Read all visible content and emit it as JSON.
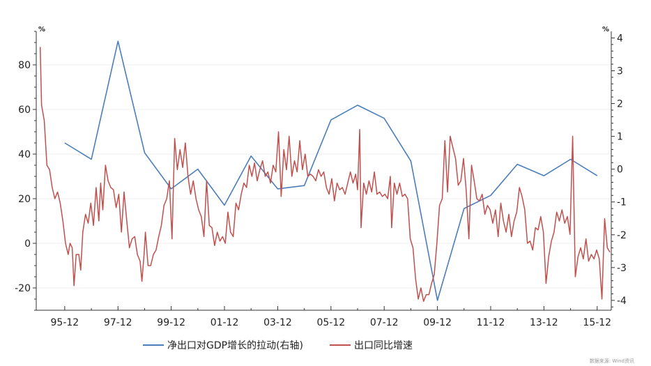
{
  "chart_data": {
    "type": "line",
    "left_axis": {
      "unit": "%",
      "ylim": [
        -30,
        95
      ],
      "ticks": [
        -20,
        0,
        20,
        40,
        60,
        80
      ]
    },
    "right_axis": {
      "unit": "%",
      "ylim": [
        -4.3,
        4.2
      ],
      "ticks": [
        -4,
        -3,
        -2,
        -1,
        0,
        1,
        2,
        3,
        4
      ]
    },
    "x_range": [
      1994.85,
      2016.45
    ],
    "x_ticks": [
      {
        "label": "95-12",
        "x": 1995.92
      },
      {
        "label": "97-12",
        "x": 1997.92
      },
      {
        "label": "99-12",
        "x": 1999.92
      },
      {
        "label": "01-12",
        "x": 2001.92
      },
      {
        "label": "03-12",
        "x": 2003.92
      },
      {
        "label": "05-12",
        "x": 2005.92
      },
      {
        "label": "07-12",
        "x": 2007.92
      },
      {
        "label": "09-12",
        "x": 2009.92
      },
      {
        "label": "11-12",
        "x": 2011.92
      },
      {
        "label": "13-12",
        "x": 2013.92
      },
      {
        "label": "15-12",
        "x": 2015.92
      }
    ],
    "gridlines": true,
    "legend_position": "bottom",
    "source_note": "数据来源: Wind资讯",
    "series": [
      {
        "name": "净出口对GDP增长的拉动(右轴)",
        "axis": "right",
        "color": "#4a7ebb",
        "points": [
          [
            1995.92,
            0.8
          ],
          [
            1996.92,
            0.3
          ],
          [
            1997.92,
            3.9
          ],
          [
            1998.92,
            0.5
          ],
          [
            1999.92,
            -0.6
          ],
          [
            2000.92,
            0.0
          ],
          [
            2001.92,
            -1.1
          ],
          [
            2002.92,
            0.4
          ],
          [
            2003.92,
            -0.6
          ],
          [
            2004.92,
            -0.5
          ],
          [
            2005.92,
            1.5
          ],
          [
            2006.92,
            1.95
          ],
          [
            2007.92,
            1.55
          ],
          [
            2008.92,
            0.25
          ],
          [
            2009.92,
            -4.0
          ],
          [
            2010.92,
            -1.2
          ],
          [
            2011.92,
            -0.8
          ],
          [
            2012.92,
            0.15
          ],
          [
            2013.92,
            -0.2
          ],
          [
            2014.92,
            0.3
          ],
          [
            2015.92,
            -0.2
          ]
        ]
      },
      {
        "name": "出口同比增速",
        "axis": "left",
        "color": "#c0504d",
        "points": [
          [
            1995.0,
            88
          ],
          [
            1995.05,
            62
          ],
          [
            1995.15,
            55
          ],
          [
            1995.25,
            35
          ],
          [
            1995.35,
            33
          ],
          [
            1995.45,
            25
          ],
          [
            1995.55,
            20
          ],
          [
            1995.65,
            23
          ],
          [
            1995.75,
            18
          ],
          [
            1995.85,
            10
          ],
          [
            1995.95,
            0
          ],
          [
            1996.05,
            -5
          ],
          [
            1996.12,
            0
          ],
          [
            1996.2,
            -2
          ],
          [
            1996.27,
            -19
          ],
          [
            1996.35,
            -5
          ],
          [
            1996.45,
            -5
          ],
          [
            1996.52,
            -12
          ],
          [
            1996.6,
            5
          ],
          [
            1996.7,
            13
          ],
          [
            1996.8,
            9
          ],
          [
            1996.9,
            18
          ],
          [
            1997.0,
            8
          ],
          [
            1997.1,
            25
          ],
          [
            1997.2,
            10
          ],
          [
            1997.27,
            27
          ],
          [
            1997.35,
            15
          ],
          [
            1997.45,
            35
          ],
          [
            1997.55,
            28
          ],
          [
            1997.65,
            25
          ],
          [
            1997.75,
            24
          ],
          [
            1997.85,
            16
          ],
          [
            1997.95,
            22
          ],
          [
            1998.05,
            5
          ],
          [
            1998.15,
            23
          ],
          [
            1998.25,
            10
          ],
          [
            1998.35,
            -2
          ],
          [
            1998.45,
            2
          ],
          [
            1998.55,
            3
          ],
          [
            1998.65,
            -5
          ],
          [
            1998.75,
            -8
          ],
          [
            1998.82,
            -17
          ],
          [
            1998.9,
            -5
          ],
          [
            1998.95,
            5
          ],
          [
            1999.05,
            -10
          ],
          [
            1999.15,
            -10
          ],
          [
            1999.25,
            -5
          ],
          [
            1999.35,
            -3
          ],
          [
            1999.45,
            3
          ],
          [
            1999.55,
            8
          ],
          [
            1999.65,
            17
          ],
          [
            1999.75,
            20
          ],
          [
            1999.85,
            28
          ],
          [
            1999.95,
            2
          ],
          [
            2000.05,
            47
          ],
          [
            2000.15,
            33
          ],
          [
            2000.25,
            42
          ],
          [
            2000.35,
            34
          ],
          [
            2000.45,
            45
          ],
          [
            2000.55,
            30
          ],
          [
            2000.65,
            22
          ],
          [
            2000.75,
            28
          ],
          [
            2000.85,
            20
          ],
          [
            2000.95,
            15
          ],
          [
            2001.05,
            12
          ],
          [
            2001.15,
            3
          ],
          [
            2001.25,
            28
          ],
          [
            2001.35,
            8
          ],
          [
            2001.45,
            7
          ],
          [
            2001.55,
            -1
          ],
          [
            2001.65,
            5
          ],
          [
            2001.75,
            1
          ],
          [
            2001.85,
            3
          ],
          [
            2001.95,
            0
          ],
          [
            2002.05,
            14
          ],
          [
            2002.15,
            5
          ],
          [
            2002.25,
            3
          ],
          [
            2002.35,
            18
          ],
          [
            2002.45,
            15
          ],
          [
            2002.55,
            22
          ],
          [
            2002.65,
            27
          ],
          [
            2002.75,
            25
          ],
          [
            2002.85,
            35
          ],
          [
            2002.95,
            30
          ],
          [
            2003.05,
            36
          ],
          [
            2003.15,
            28
          ],
          [
            2003.25,
            33
          ],
          [
            2003.35,
            37
          ],
          [
            2003.45,
            30
          ],
          [
            2003.55,
            32
          ],
          [
            2003.65,
            27
          ],
          [
            2003.75,
            35
          ],
          [
            2003.85,
            32
          ],
          [
            2003.95,
            50
          ],
          [
            2004.05,
            21
          ],
          [
            2004.15,
            42
          ],
          [
            2004.25,
            33
          ],
          [
            2004.35,
            48
          ],
          [
            2004.45,
            30
          ],
          [
            2004.55,
            37
          ],
          [
            2004.65,
            32
          ],
          [
            2004.75,
            46
          ],
          [
            2004.85,
            33
          ],
          [
            2004.95,
            40
          ],
          [
            2005.05,
            30
          ],
          [
            2005.15,
            31
          ],
          [
            2005.25,
            30
          ],
          [
            2005.35,
            28
          ],
          [
            2005.45,
            33
          ],
          [
            2005.55,
            30
          ],
          [
            2005.65,
            32
          ],
          [
            2005.75,
            25
          ],
          [
            2005.85,
            22
          ],
          [
            2005.95,
            29
          ],
          [
            2006.05,
            19
          ],
          [
            2006.15,
            27
          ],
          [
            2006.25,
            24
          ],
          [
            2006.35,
            25
          ],
          [
            2006.45,
            22
          ],
          [
            2006.55,
            27
          ],
          [
            2006.65,
            32
          ],
          [
            2006.75,
            27
          ],
          [
            2006.85,
            31
          ],
          [
            2006.92,
            24
          ],
          [
            2007.0,
            51
          ],
          [
            2007.05,
            7
          ],
          [
            2007.15,
            27
          ],
          [
            2007.25,
            22
          ],
          [
            2007.35,
            28
          ],
          [
            2007.45,
            23
          ],
          [
            2007.55,
            32
          ],
          [
            2007.65,
            22
          ],
          [
            2007.75,
            23
          ],
          [
            2007.85,
            21
          ],
          [
            2007.95,
            22
          ],
          [
            2008.05,
            20
          ],
          [
            2008.15,
            30
          ],
          [
            2008.2,
            7
          ],
          [
            2008.3,
            27
          ],
          [
            2008.4,
            22
          ],
          [
            2008.5,
            27
          ],
          [
            2008.6,
            21
          ],
          [
            2008.7,
            22
          ],
          [
            2008.8,
            20
          ],
          [
            2008.9,
            2
          ],
          [
            2009.0,
            -2
          ],
          [
            2009.1,
            -16
          ],
          [
            2009.2,
            -25
          ],
          [
            2009.3,
            -20
          ],
          [
            2009.4,
            -26
          ],
          [
            2009.5,
            -23
          ],
          [
            2009.6,
            -23
          ],
          [
            2009.7,
            -18
          ],
          [
            2009.8,
            -14
          ],
          [
            2009.9,
            0
          ],
          [
            2010.0,
            17
          ],
          [
            2010.1,
            20
          ],
          [
            2010.2,
            46
          ],
          [
            2010.3,
            23
          ],
          [
            2010.4,
            48
          ],
          [
            2010.5,
            43
          ],
          [
            2010.6,
            38
          ],
          [
            2010.7,
            26
          ],
          [
            2010.8,
            28
          ],
          [
            2010.9,
            38
          ],
          [
            2011.0,
            24
          ],
          [
            2011.1,
            2
          ],
          [
            2011.2,
            35
          ],
          [
            2011.3,
            28
          ],
          [
            2011.4,
            20
          ],
          [
            2011.5,
            19
          ],
          [
            2011.6,
            22
          ],
          [
            2011.7,
            13
          ],
          [
            2011.8,
            17
          ],
          [
            2011.9,
            15
          ],
          [
            2012.0,
            9
          ],
          [
            2012.1,
            15
          ],
          [
            2012.2,
            3
          ],
          [
            2012.3,
            18
          ],
          [
            2012.4,
            10
          ],
          [
            2012.5,
            5
          ],
          [
            2012.6,
            13
          ],
          [
            2012.7,
            3
          ],
          [
            2012.8,
            10
          ],
          [
            2012.9,
            14
          ],
          [
            2013.0,
            25
          ],
          [
            2013.1,
            21
          ],
          [
            2013.2,
            15
          ],
          [
            2013.3,
            0
          ],
          [
            2013.4,
            1
          ],
          [
            2013.5,
            -3
          ],
          [
            2013.6,
            7
          ],
          [
            2013.7,
            6
          ],
          [
            2013.8,
            12
          ],
          [
            2013.9,
            5
          ],
          [
            2014.0,
            -18
          ],
          [
            2014.1,
            -6
          ],
          [
            2014.2,
            1
          ],
          [
            2014.3,
            5
          ],
          [
            2014.4,
            14
          ],
          [
            2014.5,
            10
          ],
          [
            2014.6,
            15
          ],
          [
            2014.7,
            9
          ],
          [
            2014.8,
            12
          ],
          [
            2014.9,
            4
          ],
          [
            2015.0,
            48
          ],
          [
            2015.1,
            -15
          ],
          [
            2015.2,
            -6
          ],
          [
            2015.3,
            -2
          ],
          [
            2015.4,
            -7
          ],
          [
            2015.5,
            2
          ],
          [
            2015.6,
            -8
          ],
          [
            2015.7,
            -5
          ],
          [
            2015.8,
            -7
          ],
          [
            2015.9,
            -3
          ],
          [
            2016.0,
            -7
          ],
          [
            2016.1,
            -25
          ],
          [
            2016.2,
            11
          ],
          [
            2016.3,
            -2
          ],
          [
            2016.4,
            -4
          ]
        ]
      }
    ]
  }
}
